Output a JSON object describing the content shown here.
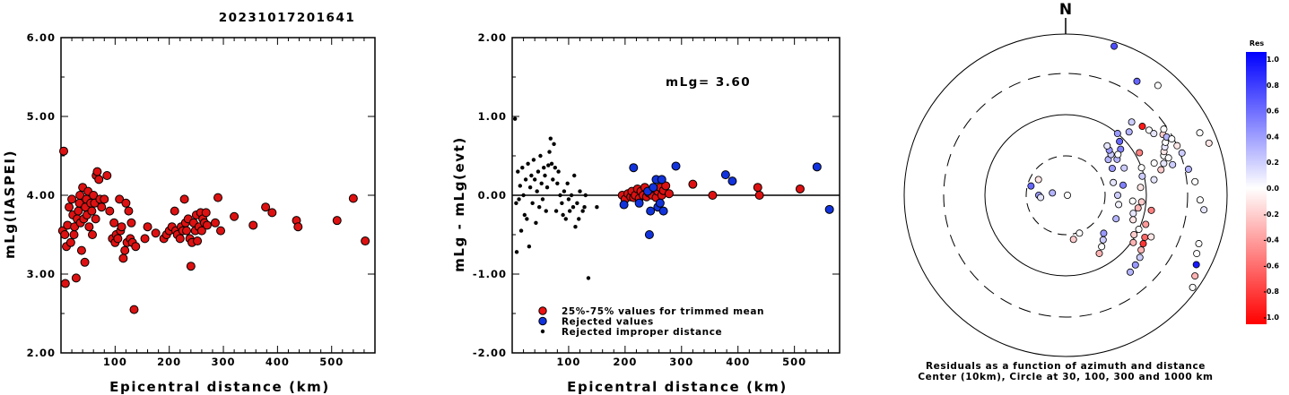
{
  "title": "20231017201641",
  "left_panel": {
    "xlabel": "Epicentral distance (km)",
    "ylabel": "mLg(IASPEI)"
  },
  "middle_panel": {
    "xlabel": "Epicentral distance (km)",
    "ylabel": "mLg - mLg(evt)",
    "annotation": "mLg= 3.60",
    "legend": [
      {
        "label": "25%-75% values for trimmed mean",
        "color": "#ee1111"
      },
      {
        "label": "Rejected values",
        "color": "#1133dd"
      },
      {
        "label": "Rejected improper distance",
        "color": "#000000"
      }
    ]
  },
  "polar_panel": {
    "north_label": "N",
    "caption_line1": "Residuals as a function of azimuth and distance",
    "caption_line2": "Center (10km), Circle at 30, 100, 300 and 1000 km"
  },
  "colorbar": {
    "title": "Res",
    "ticks": [
      "1.0",
      "0.8",
      "0.6",
      "0.4",
      "0.2",
      "0.0",
      "-0.2",
      "-0.4",
      "-0.6",
      "-0.8",
      "-1.0"
    ],
    "max_color": "#0000ff",
    "zero_color": "#ffffff",
    "min_color": "#ff0000"
  },
  "chart_data": [
    {
      "type": "scatter",
      "title": "20231017201641",
      "xlabel": "Epicentral distance (km)",
      "ylabel": "mLg(IASPEI)",
      "xlim": [
        0,
        580
      ],
      "ylim": [
        2.0,
        6.0
      ],
      "xticks": [
        100,
        200,
        300,
        400,
        500
      ],
      "yticks": [
        "2.00",
        "3.00",
        "4.00",
        "5.00",
        "6.00"
      ],
      "points": [
        [
          5,
          4.56
        ],
        [
          3,
          3.55
        ],
        [
          7,
          3.5
        ],
        [
          8,
          2.88
        ],
        [
          10,
          3.35
        ],
        [
          12,
          3.62
        ],
        [
          15,
          3.85
        ],
        [
          18,
          3.4
        ],
        [
          20,
          3.95
        ],
        [
          22,
          3.75
        ],
        [
          24,
          3.5
        ],
        [
          25,
          3.6
        ],
        [
          28,
          2.95
        ],
        [
          30,
          3.7
        ],
        [
          32,
          3.8
        ],
        [
          34,
          3.9
        ],
        [
          35,
          4.0
        ],
        [
          36,
          3.65
        ],
        [
          38,
          3.3
        ],
        [
          40,
          4.1
        ],
        [
          42,
          3.7
        ],
        [
          44,
          3.15
        ],
        [
          45,
          3.85
        ],
        [
          47,
          3.95
        ],
        [
          48,
          3.75
        ],
        [
          50,
          4.05
        ],
        [
          52,
          3.6
        ],
        [
          55,
          3.9
        ],
        [
          57,
          3.8
        ],
        [
          58,
          3.5
        ],
        [
          60,
          4.0
        ],
        [
          62,
          3.9
        ],
        [
          64,
          3.7
        ],
        [
          65,
          4.25
        ],
        [
          67,
          4.3
        ],
        [
          70,
          4.2
        ],
        [
          72,
          3.95
        ],
        [
          75,
          3.85
        ],
        [
          80,
          3.95
        ],
        [
          85,
          4.25
        ],
        [
          90,
          3.8
        ],
        [
          95,
          3.45
        ],
        [
          98,
          3.65
        ],
        [
          100,
          3.4
        ],
        [
          102,
          3.5
        ],
        [
          105,
          3.45
        ],
        [
          108,
          3.95
        ],
        [
          110,
          3.55
        ],
        [
          112,
          3.6
        ],
        [
          115,
          3.2
        ],
        [
          118,
          3.3
        ],
        [
          120,
          3.9
        ],
        [
          122,
          3.4
        ],
        [
          125,
          3.8
        ],
        [
          128,
          3.45
        ],
        [
          130,
          3.65
        ],
        [
          132,
          3.4
        ],
        [
          135,
          2.55
        ],
        [
          138,
          3.35
        ],
        [
          155,
          3.45
        ],
        [
          160,
          3.6
        ],
        [
          175,
          3.52
        ],
        [
          190,
          3.45
        ],
        [
          195,
          3.5
        ],
        [
          200,
          3.55
        ],
        [
          205,
          3.6
        ],
        [
          210,
          3.8
        ],
        [
          212,
          3.55
        ],
        [
          215,
          3.5
        ],
        [
          220,
          3.45
        ],
        [
          222,
          3.6
        ],
        [
          225,
          3.55
        ],
        [
          228,
          3.95
        ],
        [
          230,
          3.65
        ],
        [
          232,
          3.55
        ],
        [
          235,
          3.7
        ],
        [
          238,
          3.45
        ],
        [
          240,
          3.1
        ],
        [
          242,
          3.4
        ],
        [
          245,
          3.65
        ],
        [
          248,
          3.55
        ],
        [
          250,
          3.75
        ],
        [
          252,
          3.42
        ],
        [
          255,
          3.6
        ],
        [
          258,
          3.78
        ],
        [
          260,
          3.55
        ],
        [
          262,
          3.7
        ],
        [
          265,
          3.65
        ],
        [
          268,
          3.78
        ],
        [
          270,
          3.62
        ],
        [
          285,
          3.65
        ],
        [
          290,
          3.97
        ],
        [
          295,
          3.55
        ],
        [
          320,
          3.73
        ],
        [
          355,
          3.62
        ],
        [
          378,
          3.85
        ],
        [
          390,
          3.78
        ],
        [
          435,
          3.68
        ],
        [
          438,
          3.6
        ],
        [
          510,
          3.68
        ],
        [
          540,
          3.96
        ],
        [
          562,
          3.42
        ]
      ]
    },
    {
      "type": "scatter",
      "xlabel": "Epicentral distance (km)",
      "ylabel": "mLg - mLg(evt)",
      "xlim": [
        0,
        580
      ],
      "ylim": [
        -2.0,
        2.0
      ],
      "xticks": [
        100,
        200,
        300,
        400,
        500
      ],
      "yticks": [
        "-2.00",
        "-1.00",
        "0.00",
        "1.00",
        "2.00"
      ],
      "reference_line": 0.0,
      "series": [
        {
          "name": "25%-75% values for trimmed mean",
          "points": [
            [
              195,
              0.0
            ],
            [
              200,
              -0.05
            ],
            [
              205,
              0.02
            ],
            [
              210,
              -0.02
            ],
            [
              212,
              0.05
            ],
            [
              215,
              -0.03
            ],
            [
              218,
              0.0
            ],
            [
              222,
              0.08
            ],
            [
              225,
              -0.04
            ],
            [
              228,
              0.05
            ],
            [
              232,
              0.0
            ],
            [
              235,
              0.1
            ],
            [
              238,
              -0.02
            ],
            [
              242,
              0.03
            ],
            [
              248,
              0.0
            ],
            [
              252,
              0.08
            ],
            [
              255,
              -0.03
            ],
            [
              258,
              0.05
            ],
            [
              262,
              0.1
            ],
            [
              265,
              0.0
            ],
            [
              268,
              0.06
            ],
            [
              272,
              0.12
            ],
            [
              278,
              0.02
            ],
            [
              320,
              0.14
            ],
            [
              355,
              0.0
            ],
            [
              435,
              0.1
            ],
            [
              438,
              0.0
            ],
            [
              510,
              0.08
            ]
          ]
        },
        {
          "name": "Rejected values",
          "points": [
            [
              198,
              -0.12
            ],
            [
              215,
              0.35
            ],
            [
              225,
              -0.1
            ],
            [
              240,
              0.05
            ],
            [
              243,
              -0.5
            ],
            [
              245,
              -0.2
            ],
            [
              250,
              0.1
            ],
            [
              255,
              0.2
            ],
            [
              258,
              -0.15
            ],
            [
              262,
              -0.1
            ],
            [
              265,
              0.2
            ],
            [
              268,
              -0.2
            ],
            [
              290,
              0.37
            ],
            [
              378,
              0.26
            ],
            [
              390,
              0.18
            ],
            [
              540,
              0.36
            ],
            [
              562,
              -0.18
            ]
          ]
        },
        {
          "name": "Rejected improper distance",
          "points": [
            [
              5,
              0.97
            ],
            [
              7,
              -0.1
            ],
            [
              8,
              -0.72
            ],
            [
              10,
              0.3
            ],
            [
              12,
              -0.05
            ],
            [
              14,
              0.12
            ],
            [
              16,
              -0.45
            ],
            [
              18,
              0.35
            ],
            [
              20,
              0.0
            ],
            [
              22,
              -0.25
            ],
            [
              24,
              0.2
            ],
            [
              26,
              -0.3
            ],
            [
              28,
              0.4
            ],
            [
              30,
              -0.65
            ],
            [
              32,
              0.1
            ],
            [
              34,
              0.25
            ],
            [
              36,
              -0.1
            ],
            [
              38,
              0.45
            ],
            [
              40,
              0.2
            ],
            [
              42,
              -0.35
            ],
            [
              44,
              0.05
            ],
            [
              46,
              0.3
            ],
            [
              48,
              -0.15
            ],
            [
              50,
              0.5
            ],
            [
              52,
              0.15
            ],
            [
              54,
              -0.05
            ],
            [
              56,
              0.35
            ],
            [
              58,
              0.25
            ],
            [
              60,
              -0.2
            ],
            [
              62,
              0.1
            ],
            [
              64,
              0.38
            ],
            [
              66,
              0.55
            ],
            [
              68,
              0.72
            ],
            [
              70,
              0.4
            ],
            [
              72,
              0.2
            ],
            [
              74,
              0.65
            ],
            [
              76,
              0.35
            ],
            [
              78,
              -0.2
            ],
            [
              80,
              0.15
            ],
            [
              82,
              0.3
            ],
            [
              85,
              0.0
            ],
            [
              88,
              -0.1
            ],
            [
              90,
              -0.25
            ],
            [
              92,
              0.05
            ],
            [
              95,
              -0.3
            ],
            [
              98,
              0.15
            ],
            [
              100,
              -0.05
            ],
            [
              102,
              -0.2
            ],
            [
              105,
              0.0
            ],
            [
              108,
              -0.15
            ],
            [
              110,
              0.25
            ],
            [
              112,
              -0.4
            ],
            [
              115,
              -0.1
            ],
            [
              118,
              -0.3
            ],
            [
              120,
              0.05
            ],
            [
              125,
              -0.2
            ],
            [
              128,
              -0.15
            ],
            [
              130,
              0.0
            ],
            [
              135,
              -1.05
            ],
            [
              150,
              -0.15
            ]
          ]
        }
      ]
    }
  ]
}
